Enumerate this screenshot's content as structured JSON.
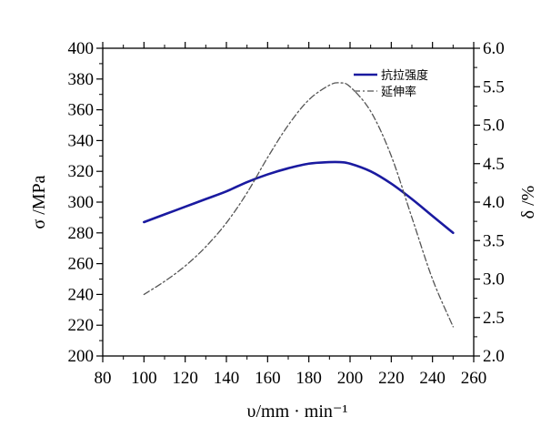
{
  "chart_data": {
    "type": "line",
    "title": "",
    "xlabel": "υ/mm · min⁻¹",
    "ylabel_left": "σ /MPa",
    "ylabel_right": "δ /%",
    "xlim": [
      80,
      260
    ],
    "ylim_left": [
      200,
      400
    ],
    "ylim_right": [
      2.0,
      6.0
    ],
    "x_ticks": [
      80,
      100,
      120,
      140,
      160,
      180,
      200,
      220,
      240,
      260
    ],
    "y_ticks_left": [
      200,
      220,
      240,
      260,
      280,
      300,
      320,
      340,
      360,
      380,
      400
    ],
    "y_ticks_right": [
      "2.0",
      "2.5",
      "3.0",
      "3.5",
      "4.0",
      "4.5",
      "5.0",
      "5.5",
      "6.0"
    ],
    "grid": false,
    "legend_position": "top-right",
    "series": [
      {
        "name": "抗拉强度",
        "axis": "left",
        "color": "#1a1aa0",
        "style": "solid",
        "x": [
          100,
          110,
          120,
          130,
          140,
          150,
          160,
          170,
          180,
          190,
          195,
          200,
          210,
          220,
          230,
          240,
          250
        ],
        "y": [
          287,
          292,
          297,
          302,
          307,
          313,
          318,
          322,
          325,
          326,
          326,
          325,
          320,
          312,
          302,
          291,
          280
        ]
      },
      {
        "name": "延伸率",
        "axis": "right",
        "color": "#555555",
        "style": "dashdot",
        "x": [
          100,
          110,
          120,
          130,
          140,
          150,
          160,
          170,
          180,
          190,
          195,
          200,
          210,
          220,
          230,
          240,
          250
        ],
        "y": [
          2.8,
          2.97,
          3.17,
          3.42,
          3.73,
          4.12,
          4.58,
          5.0,
          5.33,
          5.52,
          5.55,
          5.5,
          5.18,
          4.6,
          3.8,
          3.0,
          2.38
        ]
      }
    ]
  }
}
